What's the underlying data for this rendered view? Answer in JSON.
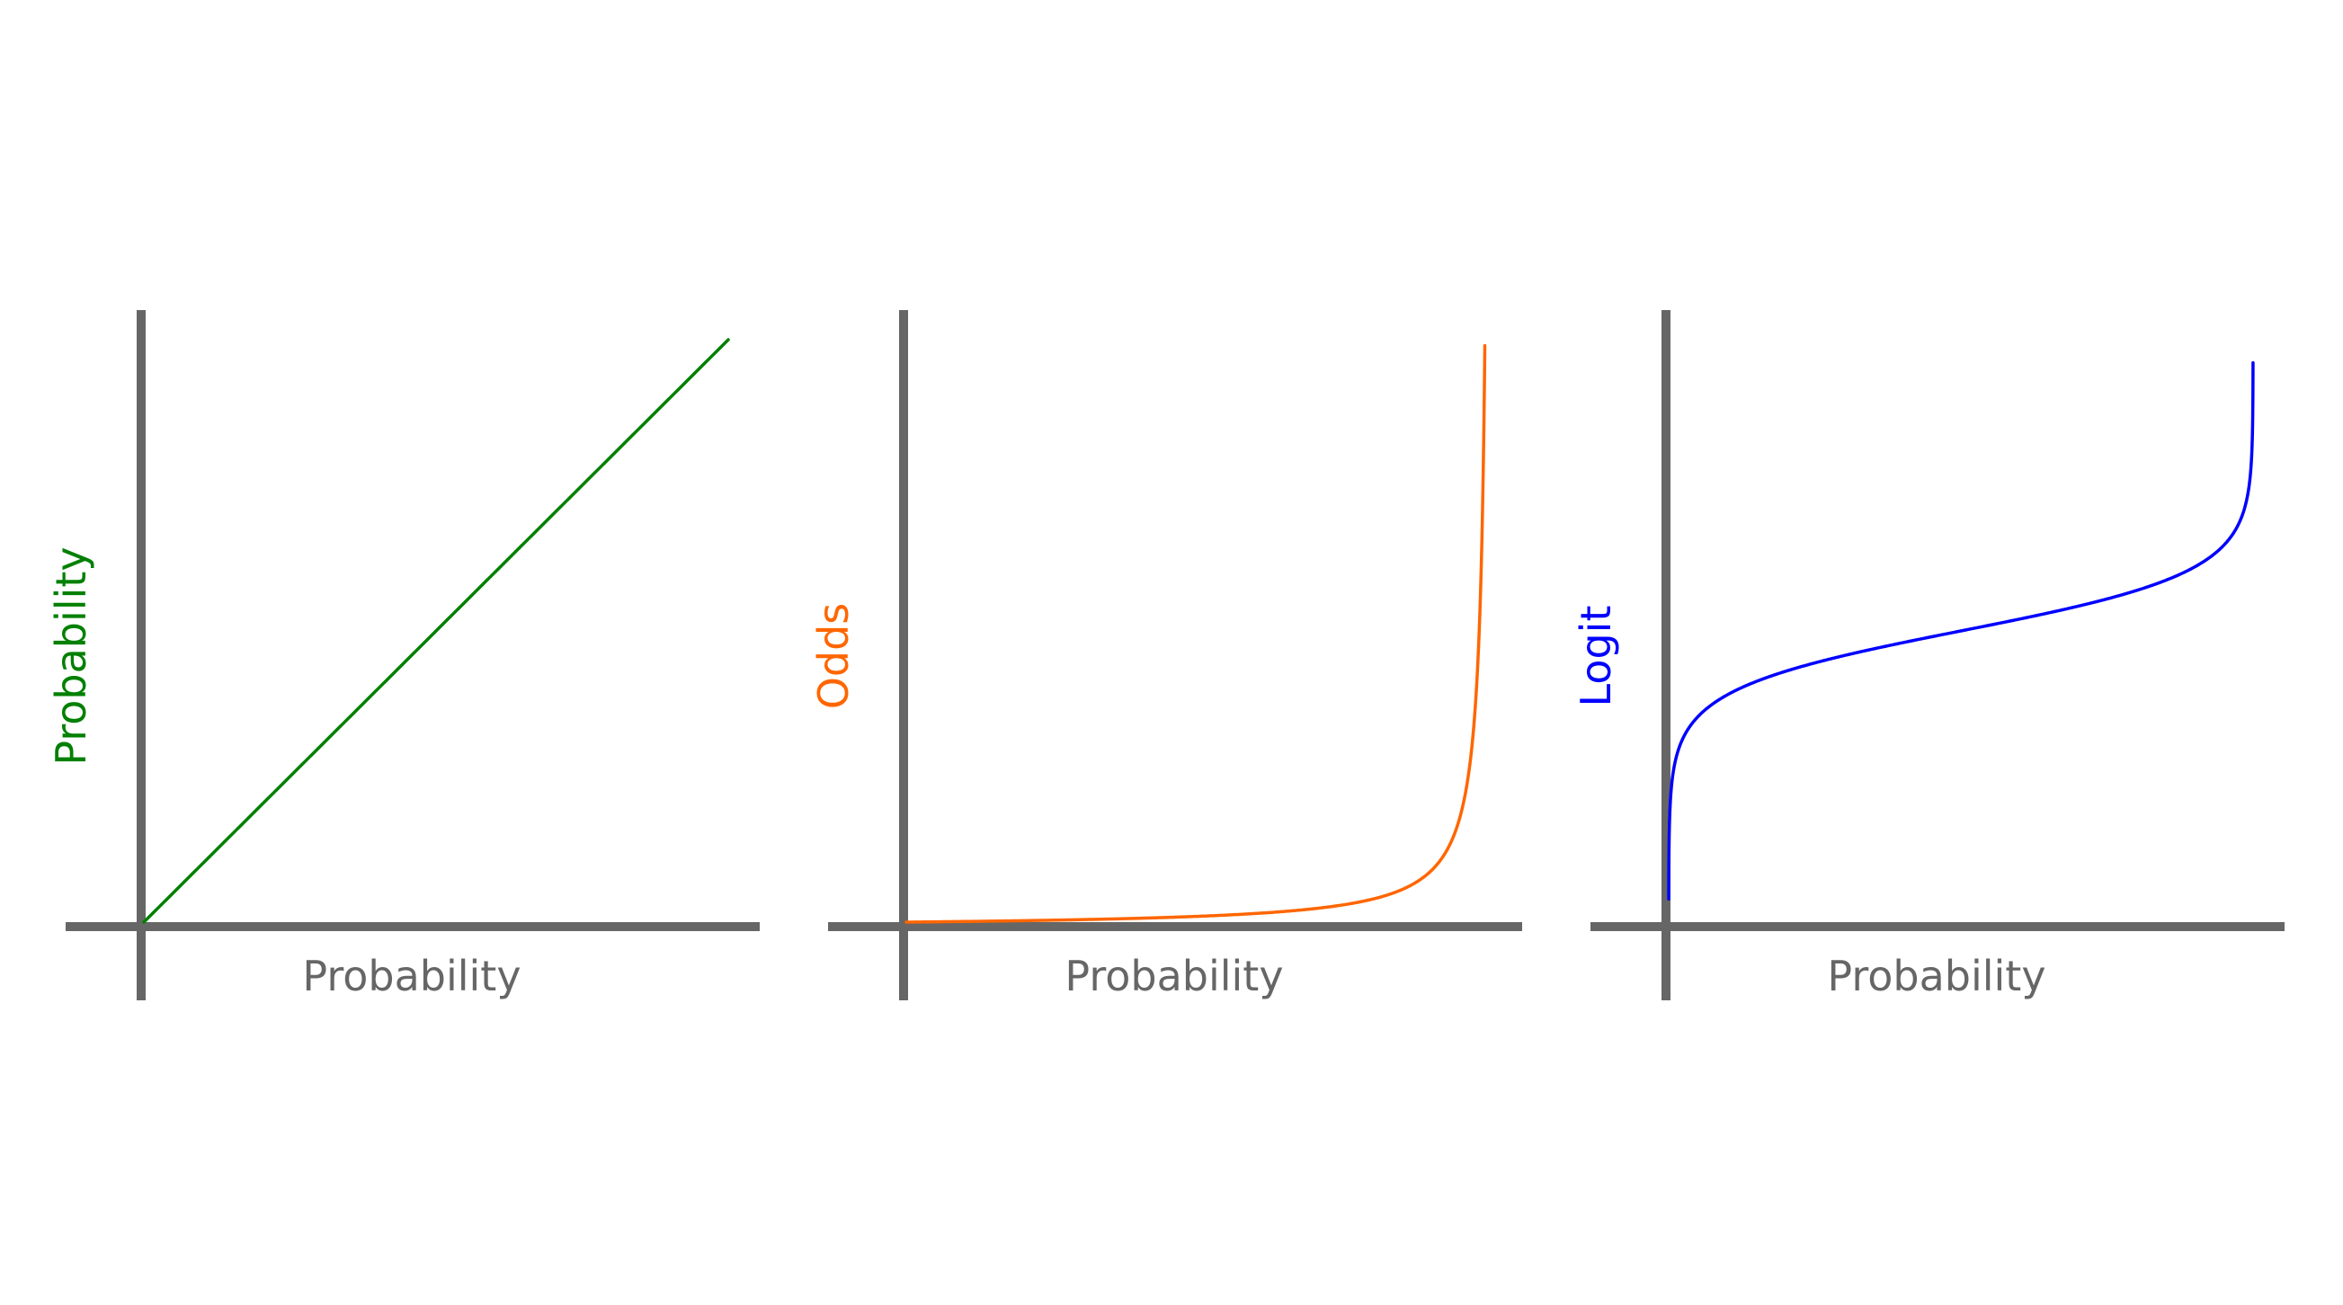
{
  "colors": {
    "axis": "#666666",
    "axis_label": "#666666"
  },
  "chart_data": [
    {
      "type": "line",
      "title": "",
      "xlabel": "Probability",
      "ylabel": "Probability",
      "ylabel_color": "#008000",
      "grid": false,
      "ticks": false,
      "xlim": [
        0,
        1
      ],
      "ylim": [
        0,
        1
      ],
      "series": [
        {
          "color": "#008000",
          "function": "probability",
          "x": [
            0,
            0.25,
            0.5,
            0.75,
            1
          ],
          "y": [
            0,
            0.25,
            0.5,
            0.75,
            1
          ]
        }
      ]
    },
    {
      "type": "line",
      "title": "",
      "xlabel": "Probability",
      "ylabel": "Odds",
      "ylabel_color": "#ff6600",
      "grid": false,
      "ticks": false,
      "xlim": [
        0,
        1
      ],
      "ylim": [
        0,
        100
      ],
      "series": [
        {
          "color": "#ff6600",
          "function": "odds",
          "x": [
            0,
            0.25,
            0.5,
            0.75,
            0.9,
            0.95,
            0.99
          ],
          "y": [
            0,
            0.333,
            1,
            3,
            9,
            19,
            99
          ]
        }
      ]
    },
    {
      "type": "line",
      "title": "",
      "xlabel": "Probability",
      "ylabel": "Logit",
      "ylabel_color": "#0000ff",
      "grid": false,
      "ticks": false,
      "xlim": [
        0,
        1
      ],
      "ylim": [
        -10,
        10
      ],
      "series": [
        {
          "color": "#0000ff",
          "function": "logit",
          "x": [
            0.0001,
            0.01,
            0.1,
            0.5,
            0.9,
            0.99,
            0.9999
          ],
          "y": [
            -9.21,
            -4.6,
            -2.2,
            0,
            2.2,
            4.6,
            9.21
          ]
        }
      ]
    }
  ]
}
